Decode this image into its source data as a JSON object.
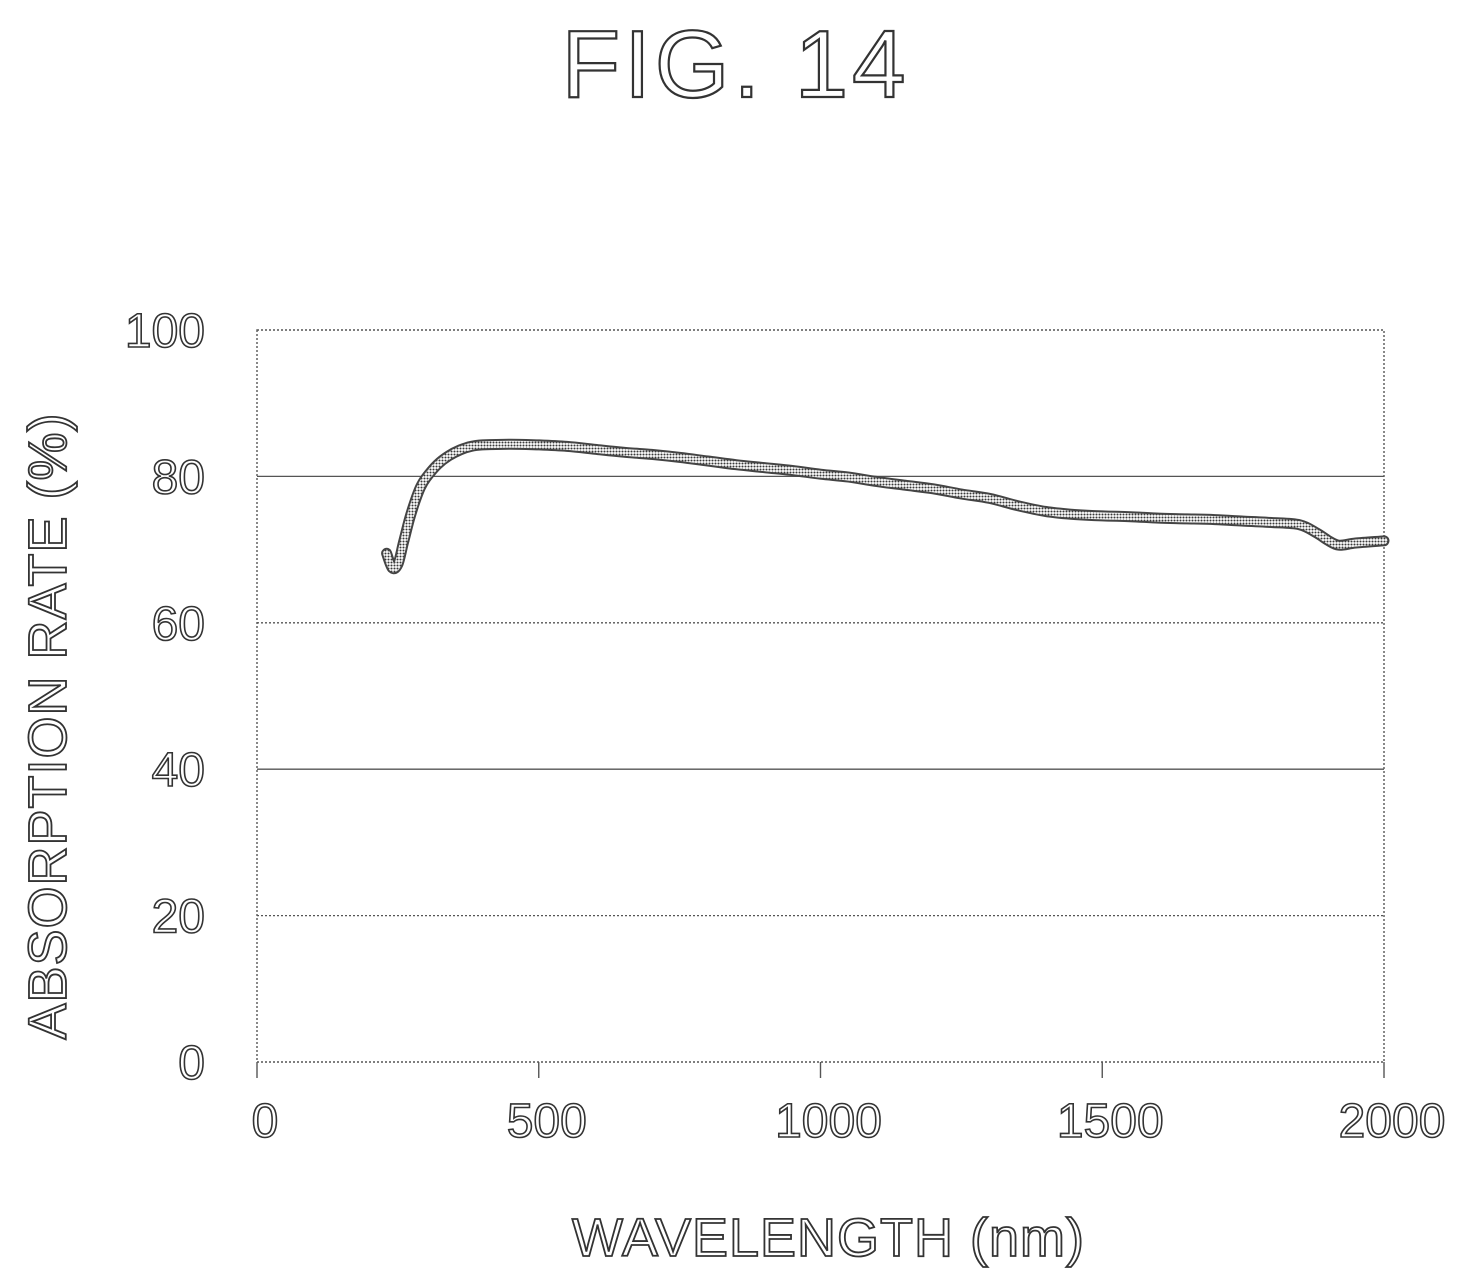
{
  "figure_label": "FIG. 14",
  "chart_data": {
    "type": "line",
    "xlabel": "WAVELENGTH (nm)",
    "ylabel": "ABSORPTION RATE (%)",
    "xlim": [
      0,
      2000
    ],
    "ylim": [
      0,
      100
    ],
    "xticks": [
      0,
      500,
      1000,
      1500,
      2000
    ],
    "yticks": [
      0,
      20,
      40,
      60,
      80,
      100
    ],
    "grid": "horizontal",
    "series": [
      {
        "color": "#444444",
        "x": [
          230,
          240,
          250,
          260,
          270,
          280,
          290,
          300,
          320,
          340,
          360,
          380,
          400,
          450,
          500,
          550,
          600,
          650,
          700,
          750,
          800,
          850,
          900,
          950,
          1000,
          1050,
          1100,
          1150,
          1200,
          1250,
          1300,
          1350,
          1400,
          1450,
          1500,
          1550,
          1600,
          1650,
          1700,
          1750,
          1800,
          1850,
          1880,
          1900,
          1920,
          1950,
          2000
        ],
        "y": [
          69.5,
          67.5,
          68.0,
          71.0,
          74.0,
          76.5,
          78.5,
          79.8,
          81.6,
          82.8,
          83.6,
          84.1,
          84.3,
          84.4,
          84.3,
          84.1,
          83.7,
          83.3,
          83.0,
          82.6,
          82.1,
          81.6,
          81.2,
          80.8,
          80.3,
          79.9,
          79.3,
          78.8,
          78.3,
          77.6,
          77.0,
          76.0,
          75.2,
          74.8,
          74.6,
          74.5,
          74.3,
          74.2,
          74.1,
          73.9,
          73.7,
          73.4,
          72.3,
          71.3,
          70.6,
          70.9,
          71.2
        ]
      }
    ]
  }
}
